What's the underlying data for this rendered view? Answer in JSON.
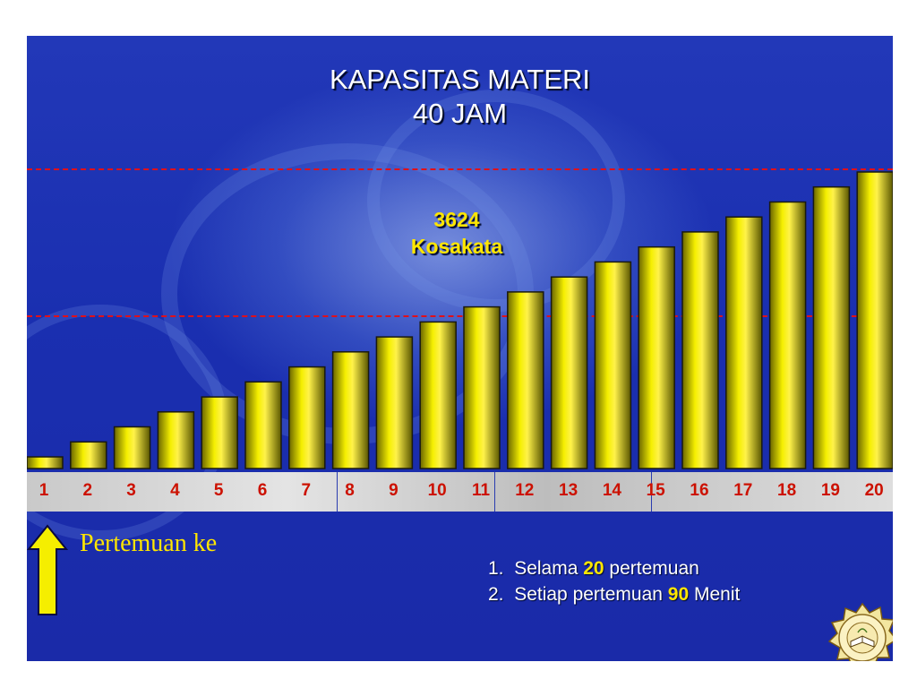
{
  "title_line1": "KAPASITAS MATERI",
  "title_line2": "40 JAM",
  "total_value": "3624",
  "total_label": "Kosakata",
  "xlabel": "Pertemuan ke",
  "notes": [
    {
      "num": "1.",
      "pre": "Selama ",
      "hl": "20",
      "post": " pertemuan"
    },
    {
      "num": "2.",
      "pre": "Setiap pertemuan ",
      "hl": "90",
      "post": " Menit"
    }
  ],
  "colors": {
    "bar": "#f2ec00",
    "bar_dark": "#5a5600",
    "guide": "#e0101a",
    "tick": "#cc1100",
    "highlight": "#ffe600"
  },
  "icons": {
    "arrow": "up-arrow-icon",
    "emblem": "seal-emblem-icon"
  },
  "chart_data": {
    "type": "bar",
    "title": "KAPASITAS MATERI 40 JAM",
    "categories": [
      "1",
      "2",
      "3",
      "4",
      "5",
      "6",
      "7",
      "8",
      "9",
      "10",
      "11",
      "12",
      "13",
      "14",
      "15",
      "16",
      "17",
      "18",
      "19",
      "20"
    ],
    "values": [
      1,
      2,
      3,
      4,
      5,
      6,
      7,
      8,
      9,
      10,
      11,
      12,
      13,
      14,
      15,
      16,
      17,
      18,
      19,
      20
    ],
    "xlabel": "Pertemuan ke",
    "ylabel": "",
    "ylim": [
      0,
      20
    ],
    "reference_lines": [
      10,
      20
    ],
    "grid": false,
    "annotation": "3624 Kosakata"
  }
}
